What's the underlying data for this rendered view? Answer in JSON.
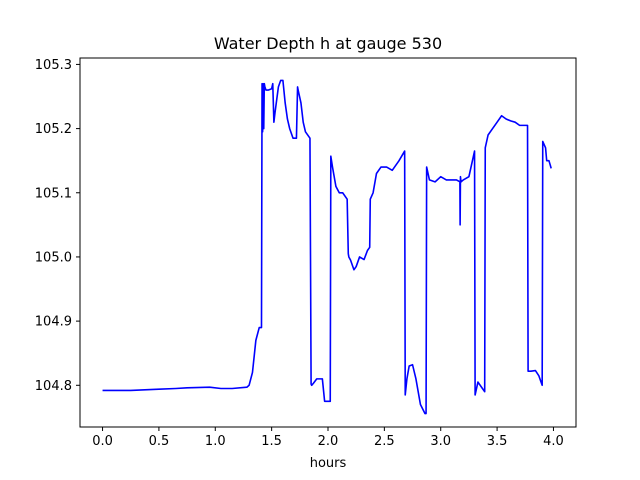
{
  "chart_data": {
    "type": "line",
    "title": "Water Depth h at gauge 530",
    "xlabel": "hours",
    "ylabel": "",
    "xlim": [
      -0.2,
      4.2
    ],
    "ylim": [
      104.735,
      105.31
    ],
    "xticks": [
      0.0,
      0.5,
      1.0,
      1.5,
      2.0,
      2.5,
      3.0,
      3.5,
      4.0
    ],
    "xtick_labels": [
      "0.0",
      "0.5",
      "1.0",
      "1.5",
      "2.0",
      "2.5",
      "3.0",
      "3.5",
      "4.0"
    ],
    "yticks": [
      104.8,
      104.9,
      105.0,
      105.1,
      105.2,
      105.3
    ],
    "ytick_labels": [
      "104.8",
      "104.9",
      "105.0",
      "105.1",
      "105.2",
      "105.3"
    ],
    "grid": false,
    "series": [
      {
        "color": "#0000ff",
        "x": [
          0.0,
          0.25,
          0.5,
          0.65,
          0.75,
          0.95,
          1.05,
          1.15,
          1.28,
          1.3,
          1.33,
          1.36,
          1.39,
          1.41,
          1.415,
          1.42,
          1.425,
          1.43,
          1.435,
          1.44,
          1.45,
          1.47,
          1.5,
          1.51,
          1.52,
          1.53,
          1.56,
          1.58,
          1.6,
          1.62,
          1.64,
          1.66,
          1.69,
          1.72,
          1.73,
          1.735,
          1.76,
          1.78,
          1.8,
          1.84,
          1.85,
          1.855,
          1.87,
          1.9,
          1.95,
          1.97,
          2.02,
          2.025,
          2.04,
          2.07,
          2.1,
          2.13,
          2.17,
          2.18,
          2.185,
          2.2,
          2.23,
          2.25,
          2.28,
          2.32,
          2.35,
          2.37,
          2.375,
          2.4,
          2.43,
          2.47,
          2.52,
          2.57,
          2.63,
          2.68,
          2.685,
          2.7,
          2.72,
          2.75,
          2.78,
          2.82,
          2.86,
          2.87,
          2.875,
          2.9,
          2.95,
          3.0,
          3.05,
          3.1,
          3.14,
          3.17,
          3.172,
          3.175,
          3.18,
          3.2,
          3.25,
          3.3,
          3.305,
          3.33,
          3.37,
          3.39,
          3.395,
          3.42,
          3.46,
          3.5,
          3.54,
          3.58,
          3.62,
          3.66,
          3.7,
          3.77,
          3.775,
          3.8,
          3.84,
          3.87,
          3.9,
          3.905,
          3.93,
          3.94,
          3.96,
          3.98
        ],
        "values": [
          104.792,
          104.792,
          104.794,
          104.795,
          104.796,
          104.797,
          104.795,
          104.795,
          104.797,
          104.8,
          104.82,
          104.87,
          104.89,
          104.89,
          105.27,
          105.195,
          105.27,
          105.2,
          105.27,
          105.265,
          105.26,
          105.26,
          105.262,
          105.27,
          105.21,
          105.225,
          105.265,
          105.275,
          105.275,
          105.24,
          105.215,
          105.2,
          105.185,
          105.185,
          105.265,
          105.26,
          105.24,
          105.21,
          105.195,
          105.185,
          104.802,
          104.8,
          104.803,
          104.81,
          104.81,
          104.775,
          104.775,
          105.157,
          105.14,
          105.11,
          105.1,
          105.1,
          105.09,
          105.005,
          105.0,
          104.995,
          104.98,
          104.985,
          105.0,
          104.996,
          105.01,
          105.015,
          105.09,
          105.1,
          105.13,
          105.14,
          105.14,
          105.135,
          105.15,
          105.165,
          104.785,
          104.81,
          104.83,
          104.832,
          104.81,
          104.77,
          104.756,
          104.756,
          105.14,
          105.12,
          105.117,
          105.125,
          105.12,
          105.12,
          105.12,
          105.117,
          105.05,
          105.125,
          105.117,
          105.12,
          105.125,
          105.165,
          104.785,
          104.805,
          104.795,
          104.79,
          105.17,
          105.19,
          105.2,
          105.21,
          105.22,
          105.215,
          105.212,
          105.21,
          105.205,
          105.205,
          104.822,
          104.822,
          104.823,
          104.815,
          104.8,
          105.18,
          105.17,
          105.15,
          105.15,
          105.138
        ]
      }
    ]
  }
}
